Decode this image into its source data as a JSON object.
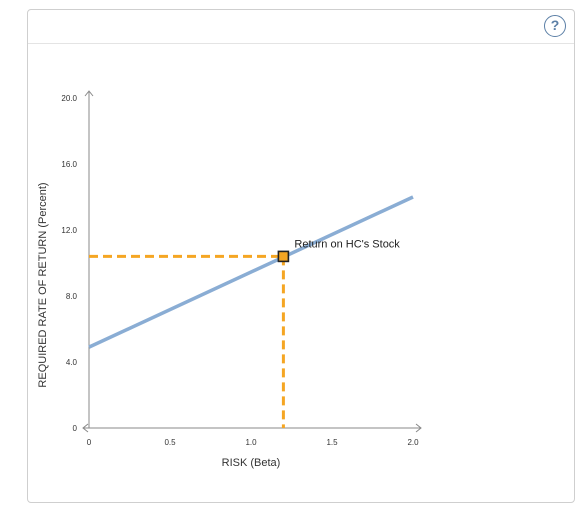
{
  "help": {
    "label": "?"
  },
  "chart_data": {
    "type": "line",
    "xlabel": "RISK (Beta)",
    "ylabel": "REQUIRED RATE OF RETURN (Percent)",
    "xlim": [
      0,
      2.0
    ],
    "ylim": [
      0,
      20.0
    ],
    "x_ticks": [
      "0",
      "0.5",
      "1.0",
      "1.5",
      "2.0"
    ],
    "y_ticks": [
      "0",
      "4.0",
      "8.0",
      "12.0",
      "16.0",
      "20.0"
    ],
    "series": [
      {
        "x": [
          0,
          2.0
        ],
        "y": [
          4.9,
          14.0
        ],
        "color": "#8aadd4"
      }
    ],
    "point": {
      "label": "Return on HC's Stock",
      "x": 1.2,
      "y": 10.4,
      "color": "#f5a623"
    },
    "grid": false
  }
}
